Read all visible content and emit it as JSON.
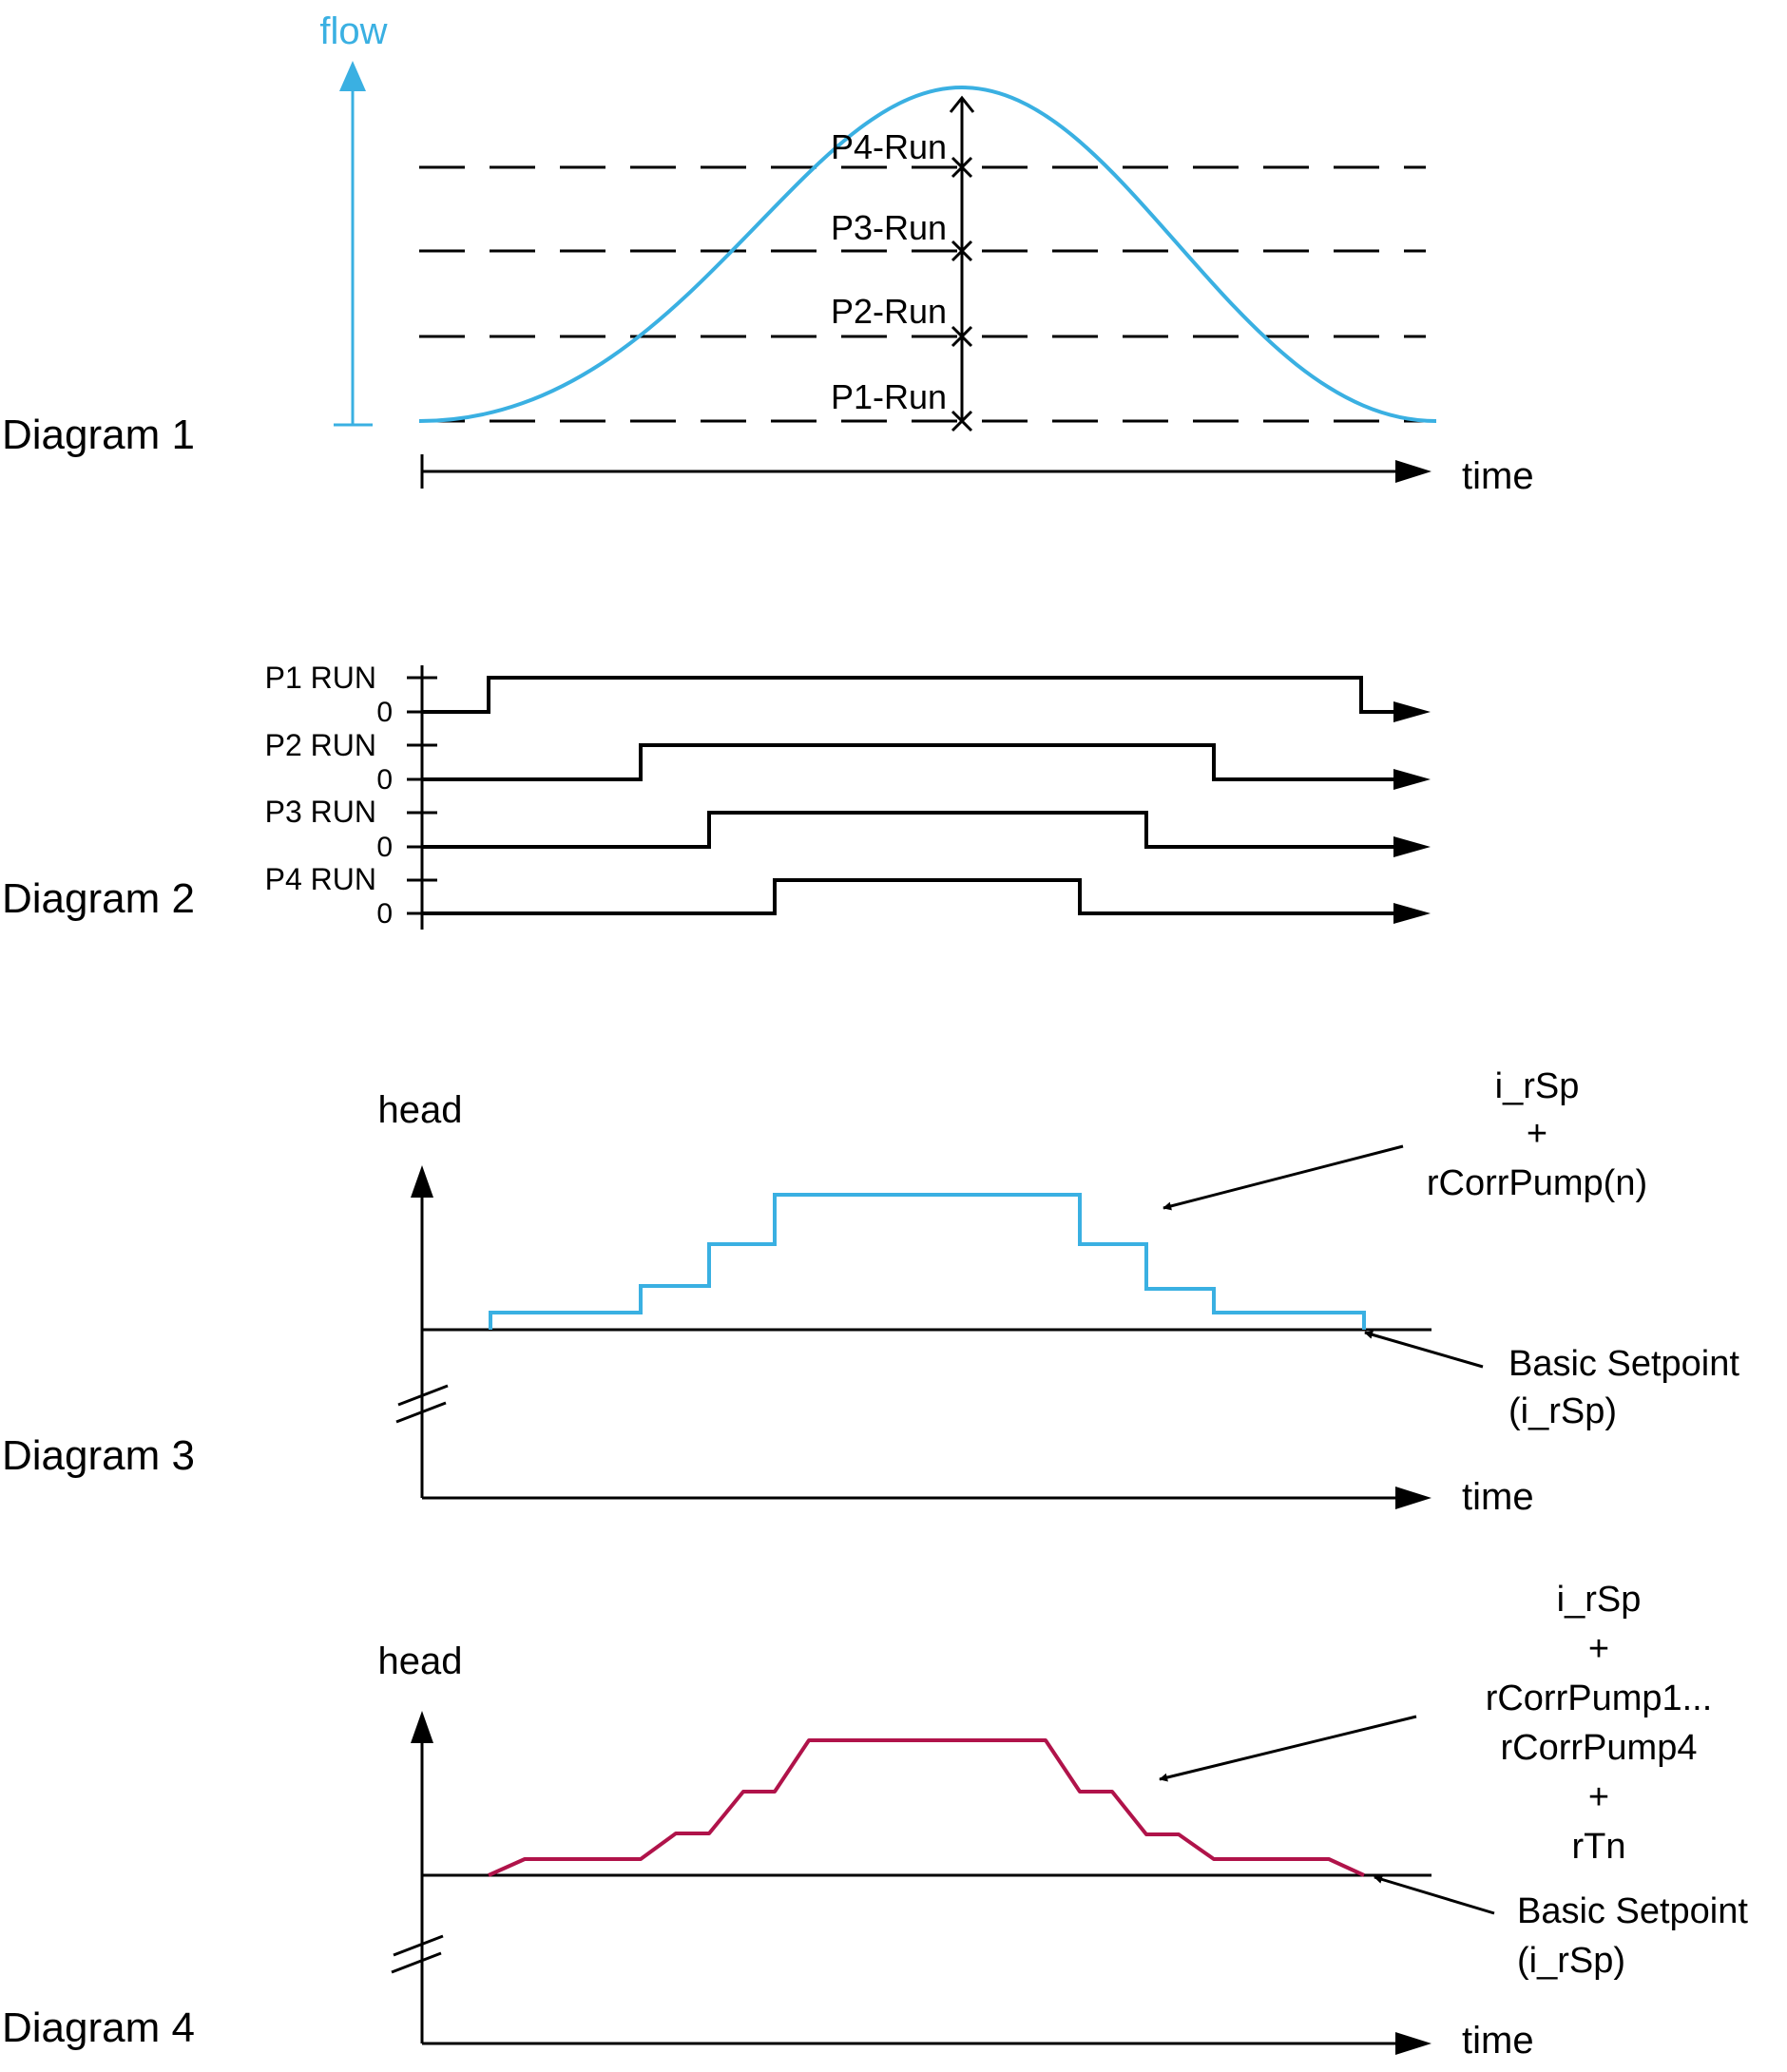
{
  "colors": {
    "ink": "#000000",
    "flow_curve": "#3ab0e2",
    "head_step": "#3ab0e2",
    "head_ramp": "#b0134a"
  },
  "diagram1": {
    "title": "Diagram 1",
    "y_label": "flow",
    "x_label": "time",
    "levels": [
      {
        "label": "P1-Run"
      },
      {
        "label": "P2-Run"
      },
      {
        "label": "P3-Run"
      },
      {
        "label": "P4-Run"
      }
    ]
  },
  "diagram2": {
    "title": "Diagram 2",
    "zero_label": "0",
    "signals": [
      {
        "label": "P1 RUN"
      },
      {
        "label": "P2 RUN"
      },
      {
        "label": "P3 RUN"
      },
      {
        "label": "P4 RUN"
      }
    ]
  },
  "diagram3": {
    "title": "Diagram 3",
    "y_label": "head",
    "x_label": "time",
    "curve_annotation": [
      "i_rSp",
      "+",
      "rCorrPump(n)"
    ],
    "baseline_annotation": [
      "Basic Setpoint",
      "(i_rSp)"
    ]
  },
  "diagram4": {
    "title": "Diagram 4",
    "y_label": "head",
    "x_label": "time",
    "curve_annotation": [
      "i_rSp",
      "+",
      "rCorrPump1...",
      "rCorrPump4",
      "+",
      "rTn"
    ],
    "baseline_annotation": [
      "Basic Setpoint",
      "(i_rSp)"
    ]
  }
}
